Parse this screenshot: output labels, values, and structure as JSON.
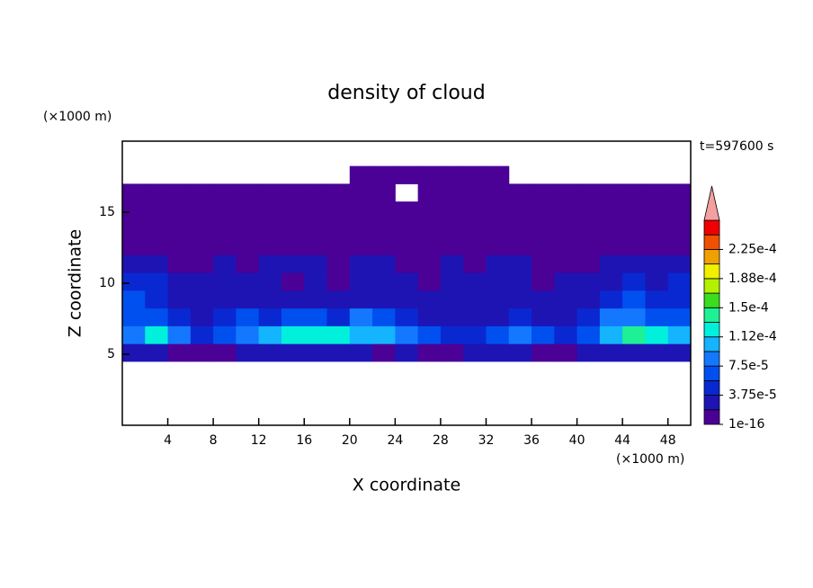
{
  "chart_data": {
    "type": "contour",
    "title": "density of cloud",
    "x_unit_label": "(×1000 m)",
    "y_unit_label": "(×1000 m)",
    "annotation": "t=597600 s",
    "xlabel": "X coordinate",
    "ylabel": "Z coordinate",
    "xlim": [
      0,
      50
    ],
    "ylim": [
      0,
      20
    ],
    "xticks": [
      4,
      8,
      12,
      16,
      20,
      24,
      28,
      32,
      36,
      40,
      44,
      48
    ],
    "yticks": [
      5,
      10,
      15
    ],
    "x": [
      1,
      3,
      5,
      7,
      9,
      11,
      13,
      15,
      17,
      19,
      21,
      23,
      25,
      27,
      29,
      31,
      33,
      35,
      37,
      39,
      41,
      43,
      45,
      47,
      49
    ],
    "y": [
      5.125,
      6.375,
      7.625,
      8.875,
      10.125,
      11.375,
      12.625,
      13.875,
      15.125,
      16.375,
      17.625
    ],
    "values": [
      [
        3e-05,
        3e-05,
        1e-06,
        1e-06,
        1e-06,
        3e-05,
        3e-05,
        3e-05,
        3e-05,
        3e-05,
        3e-05,
        1e-06,
        3e-05,
        1e-06,
        1e-06,
        3e-05,
        3e-05,
        3e-05,
        1e-06,
        1e-06,
        3e-05,
        3e-05,
        3e-05,
        3e-05,
        3e-05
      ],
      [
        9e-05,
        0.00012,
        8e-05,
        4e-05,
        6e-05,
        9e-05,
        0.00011,
        0.00012,
        0.00013,
        0.00012,
        0.00011,
        0.00011,
        8e-05,
        6e-05,
        5e-05,
        5e-05,
        6e-05,
        8e-05,
        6e-05,
        4e-05,
        7e-05,
        0.00011,
        0.00014,
        0.00013,
        0.0001
      ],
      [
        7e-05,
        6e-05,
        5e-05,
        3e-05,
        5e-05,
        6e-05,
        5e-05,
        6e-05,
        6e-05,
        5e-05,
        8e-05,
        6e-05,
        4e-05,
        3e-05,
        3e-05,
        3e-05,
        3e-05,
        4e-05,
        3e-05,
        3e-05,
        5e-05,
        8e-05,
        9e-05,
        7e-05,
        6e-05
      ],
      [
        6e-05,
        5e-05,
        3e-05,
        2e-05,
        2e-05,
        2e-05,
        2e-05,
        2e-05,
        2e-05,
        2e-05,
        2e-05,
        2e-05,
        2e-05,
        2e-05,
        2e-05,
        2e-05,
        2e-05,
        2e-05,
        2e-05,
        2e-05,
        3e-05,
        5e-05,
        6e-05,
        5e-05,
        5e-05
      ],
      [
        5e-05,
        4e-05,
        2e-05,
        2e-05,
        2e-05,
        2e-05,
        2e-05,
        1e-06,
        2e-05,
        1e-06,
        2e-05,
        2e-05,
        2e-05,
        1e-06,
        2e-05,
        2e-05,
        2e-05,
        2e-05,
        1e-06,
        2e-05,
        2e-05,
        3e-05,
        4e-05,
        3e-05,
        4e-05
      ],
      [
        2e-05,
        2e-05,
        1e-06,
        1e-06,
        2e-05,
        1e-06,
        2e-05,
        2e-05,
        2e-05,
        1e-06,
        2e-05,
        2e-05,
        1e-06,
        1e-06,
        2e-05,
        1e-06,
        2e-05,
        2e-05,
        1e-06,
        1e-06,
        1e-06,
        2e-05,
        3e-05,
        2e-05,
        2e-05
      ],
      [
        1e-06,
        1e-06,
        1e-06,
        1e-06,
        1e-06,
        1e-06,
        1e-06,
        1e-06,
        1e-06,
        1e-06,
        1e-06,
        1e-06,
        1e-06,
        1e-06,
        1e-06,
        1e-06,
        1e-06,
        1e-06,
        1e-06,
        1e-06,
        1e-06,
        1e-06,
        1e-06,
        1e-06,
        1e-06
      ],
      [
        1e-06,
        1e-06,
        1e-06,
        1e-06,
        1e-06,
        1e-06,
        1e-06,
        1e-06,
        1e-06,
        1e-06,
        1e-06,
        1e-06,
        1e-06,
        1e-06,
        1e-06,
        1e-06,
        1e-06,
        1e-06,
        1e-06,
        1e-06,
        1e-06,
        1e-06,
        1e-06,
        1e-06,
        1e-06
      ],
      [
        1e-06,
        1e-06,
        1e-06,
        1e-06,
        1e-06,
        1e-06,
        1e-06,
        1e-06,
        1e-06,
        1e-06,
        1e-06,
        1e-06,
        1e-06,
        1e-06,
        1e-06,
        1e-06,
        1e-06,
        1e-06,
        1e-06,
        1e-06,
        1e-06,
        1e-06,
        1e-06,
        1e-06,
        1e-06
      ],
      [
        1e-06,
        1e-06,
        1e-06,
        1e-06,
        1e-06,
        1e-06,
        1e-06,
        1e-06,
        1e-06,
        1e-06,
        1e-06,
        1e-06,
        null,
        1e-06,
        1e-06,
        1e-06,
        1e-06,
        1e-06,
        1e-06,
        1e-06,
        1e-06,
        1e-06,
        1e-06,
        1e-06,
        1e-06
      ],
      [
        null,
        null,
        null,
        null,
        null,
        null,
        null,
        null,
        null,
        null,
        1e-06,
        1e-06,
        1e-06,
        1e-06,
        1e-06,
        1e-06,
        1e-06,
        null,
        null,
        null,
        null,
        null,
        null,
        null,
        null
      ]
    ],
    "colorbar": {
      "levels": [
        1e-16,
        1.875e-05,
        3.75e-05,
        5.625e-05,
        7.5e-05,
        9.375e-05,
        0.0001125,
        0.00013125,
        0.00015,
        0.00016875,
        0.0001875,
        0.00020625,
        0.000225,
        0.00024375,
        0.0002625
      ],
      "colors": [
        "#4b0096",
        "#1e14b4",
        "#0a28d2",
        "#0050f0",
        "#1478ff",
        "#14b4ff",
        "#00f0dc",
        "#1ef096",
        "#3cdc1e",
        "#b4f000",
        "#f0f000",
        "#f0a000",
        "#f05000",
        "#f00000"
      ],
      "extend_color": "#f4a0a0",
      "ticks": [
        1e-16,
        {
          "value": 3.75e-05,
          "label": "3.75e-5"
        },
        {
          "value": 7.5e-05,
          "label": "7.5e-5"
        },
        {
          "value": 0.0001125,
          "label": "1.12e-4"
        },
        {
          "value": 0.00015,
          "label": "1.5e-4"
        },
        {
          "value": 0.0001875,
          "label": "1.88e-4"
        },
        {
          "value": 0.000225,
          "label": "2.25e-4"
        }
      ]
    }
  }
}
